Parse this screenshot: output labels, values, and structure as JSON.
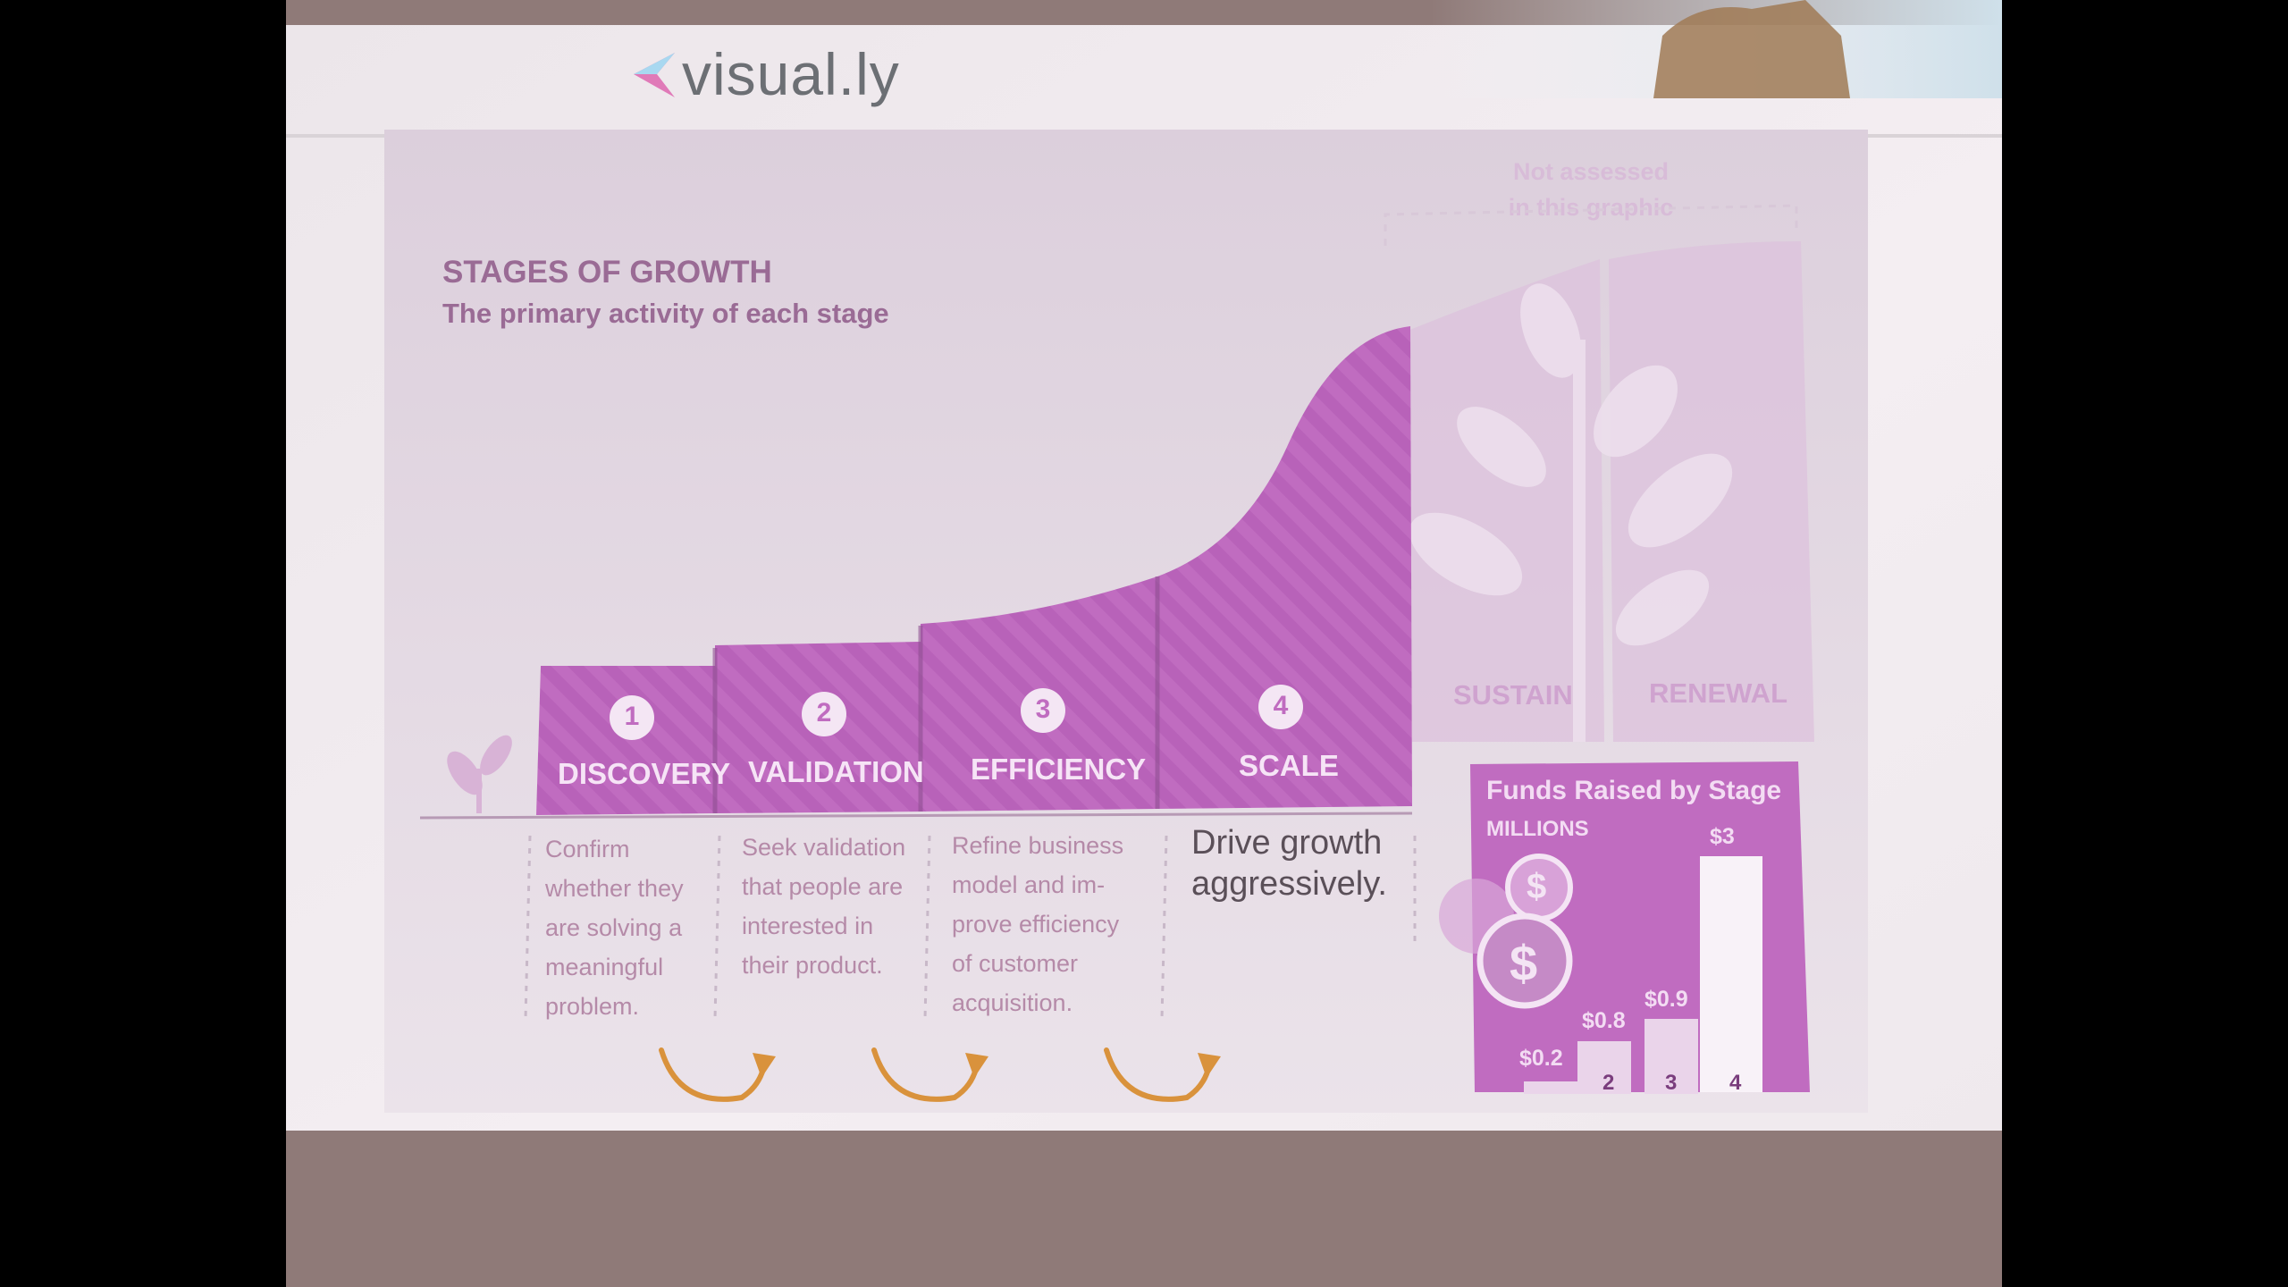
{
  "brand": {
    "name": "visual.ly"
  },
  "infographic": {
    "title": "STAGES OF GROWTH",
    "subtitle": "The primary activity of each stage",
    "not_assessed": [
      "Not assessed",
      "in this graphic"
    ],
    "later_stages": [
      "SUSTAIN",
      "RENEWAL"
    ],
    "stages": [
      {
        "number": "1",
        "name": "DISCOVERY",
        "description": [
          "Confirm",
          "whether they",
          "are solving a",
          "meaningful",
          "problem."
        ]
      },
      {
        "number": "2",
        "name": "VALIDATION",
        "description": [
          "Seek validation",
          "that people are",
          "interested in",
          "their product."
        ]
      },
      {
        "number": "3",
        "name": "EFFICIENCY",
        "description": [
          "Refine business",
          "model and im-",
          "prove efficiency",
          "of customer",
          "acquisition."
        ]
      },
      {
        "number": "4",
        "name": "SCALE",
        "description": [
          "Drive growth",
          "aggressively."
        ]
      }
    ],
    "funds": {
      "title": "Funds Raised by Stage",
      "unit_label": "MILLIONS",
      "bar_labels": [
        "$0.2",
        "$0.8",
        "$0.9",
        "$3"
      ],
      "stage_labels": [
        "2",
        "3",
        "4"
      ],
      "values_millions": [
        0.2,
        0.8,
        0.9,
        3
      ],
      "coin_symbol": "$"
    }
  },
  "colors": {
    "purple": "#c06cc0",
    "purple_dark": "#a553a8",
    "purple_light": "#e3c8e3",
    "label_on_purple": "#f6e4f6",
    "title_text": "#9a6b95",
    "arrow": "#d9923c",
    "projector_wall": "#8f7a78"
  }
}
